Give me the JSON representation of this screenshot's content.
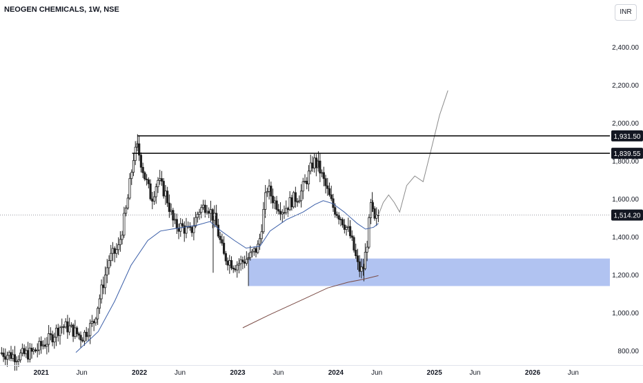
{
  "header": {
    "symbol_title": "NEOGEN CHEMICALS, 1W, NSE",
    "currency": "INR"
  },
  "colors": {
    "candle": "#1f1f1f",
    "ma_short": "#3a5ea8",
    "ma_long": "#7a4a44",
    "zone": "#a9bdf0",
    "projection": "#8a8a8a",
    "level_line": "#000000",
    "crosshair": "#9598a1"
  },
  "chart_data": {
    "type": "candlestick",
    "title": "NEOGEN CHEMICALS, 1W, NSE",
    "y_axis": {
      "ticks": [
        800,
        1000,
        1200,
        1400,
        1600,
        1800,
        2000,
        2200,
        2400
      ],
      "tick_labels": [
        "800.00",
        "1,000.00",
        "1,200.00",
        "1,400.00",
        "1,600.00",
        "1,800.00",
        "2,000.00",
        "2,200.00",
        "2,400.00"
      ],
      "range": [
        770,
        2600
      ]
    },
    "x_axis": {
      "range": [
        "2020-08-01",
        "2026-10-15"
      ],
      "ticks": [
        {
          "date": "2021-01-01",
          "label": "2021",
          "bold": true
        },
        {
          "date": "2021-06-01",
          "label": "Jun",
          "bold": false
        },
        {
          "date": "2022-01-01",
          "label": "2022",
          "bold": true
        },
        {
          "date": "2022-06-01",
          "label": "Jun",
          "bold": false
        },
        {
          "date": "2023-01-01",
          "label": "2023",
          "bold": true
        },
        {
          "date": "2023-06-01",
          "label": "Jun",
          "bold": false
        },
        {
          "date": "2024-01-01",
          "label": "2024",
          "bold": true
        },
        {
          "date": "2024-06-01",
          "label": "Jun",
          "bold": false
        },
        {
          "date": "2025-01-01",
          "label": "2025",
          "bold": true
        },
        {
          "date": "2025-06-01",
          "label": "Jun",
          "bold": false
        },
        {
          "date": "2026-01-01",
          "label": "2026",
          "bold": true
        },
        {
          "date": "2026-06-01",
          "label": "Jun",
          "bold": false
        }
      ]
    },
    "closes_anchors": [
      [
        "2020-08-01",
        790
      ],
      [
        "2020-10-01",
        770
      ],
      [
        "2020-12-01",
        790
      ],
      [
        "2021-02-01",
        860
      ],
      [
        "2021-03-15",
        930
      ],
      [
        "2021-04-15",
        920
      ],
      [
        "2021-06-01",
        870
      ],
      [
        "2021-07-15",
        950
      ],
      [
        "2021-08-10",
        1100
      ],
      [
        "2021-09-10",
        1280
      ],
      [
        "2021-10-15",
        1340
      ],
      [
        "2021-11-15",
        1560
      ],
      [
        "2021-12-10",
        1820
      ],
      [
        "2021-12-25",
        1870
      ],
      [
        "2022-01-20",
        1720
      ],
      [
        "2022-02-15",
        1600
      ],
      [
        "2022-03-10",
        1700
      ],
      [
        "2022-04-10",
        1620
      ],
      [
        "2022-05-10",
        1460
      ],
      [
        "2022-06-10",
        1450
      ],
      [
        "2022-07-10",
        1420
      ],
      [
        "2022-08-10",
        1540
      ],
      [
        "2022-09-10",
        1570
      ],
      [
        "2022-10-10",
        1480
      ],
      [
        "2022-11-10",
        1300
      ],
      [
        "2022-12-20",
        1250
      ],
      [
        "2023-01-20",
        1270
      ],
      [
        "2023-02-20",
        1300
      ],
      [
        "2023-03-20",
        1350
      ],
      [
        "2023-04-20",
        1660
      ],
      [
        "2023-05-20",
        1580
      ],
      [
        "2023-06-20",
        1540
      ],
      [
        "2023-07-20",
        1590
      ],
      [
        "2023-08-20",
        1620
      ],
      [
        "2023-09-20",
        1720
      ],
      [
        "2023-10-10",
        1800
      ],
      [
        "2023-10-31",
        1760
      ],
      [
        "2023-11-25",
        1660
      ],
      [
        "2023-12-20",
        1560
      ],
      [
        "2024-01-20",
        1500
      ],
      [
        "2024-02-20",
        1420
      ],
      [
        "2024-03-10",
        1320
      ],
      [
        "2024-03-25",
        1230
      ],
      [
        "2024-04-10",
        1220
      ],
      [
        "2024-04-25",
        1360
      ],
      [
        "2024-05-10",
        1560
      ],
      [
        "2024-05-25",
        1470
      ],
      [
        "2024-06-07",
        1514
      ]
    ],
    "highs_lows": [
      {
        "date": "2021-12-25",
        "high": 1940
      },
      {
        "date": "2023-10-28",
        "high": 1850
      },
      {
        "date": "2023-02-10",
        "low": 1140
      },
      {
        "date": "2024-04-14",
        "low": 1165
      },
      {
        "date": "2024-05-15",
        "high": 1635
      },
      {
        "date": "2022-10-02",
        "low": 1210
      }
    ],
    "ma_short": [
      [
        "2021-05-10",
        790
      ],
      [
        "2021-08-01",
        900
      ],
      [
        "2021-10-01",
        1060
      ],
      [
        "2021-12-01",
        1250
      ],
      [
        "2022-02-01",
        1380
      ],
      [
        "2022-03-20",
        1430
      ],
      [
        "2022-05-01",
        1440
      ],
      [
        "2022-06-15",
        1450
      ],
      [
        "2022-08-01",
        1460
      ],
      [
        "2022-09-20",
        1480
      ],
      [
        "2022-11-01",
        1430
      ],
      [
        "2022-12-20",
        1380
      ],
      [
        "2023-02-01",
        1340
      ],
      [
        "2023-03-25",
        1350
      ],
      [
        "2023-05-01",
        1430
      ],
      [
        "2023-07-01",
        1490
      ],
      [
        "2023-09-01",
        1530
      ],
      [
        "2023-10-15",
        1570
      ],
      [
        "2023-11-15",
        1590
      ],
      [
        "2023-12-20",
        1575
      ],
      [
        "2024-02-01",
        1530
      ],
      [
        "2024-03-20",
        1470
      ],
      [
        "2024-04-20",
        1440
      ],
      [
        "2024-05-20",
        1450
      ],
      [
        "2024-06-07",
        1470
      ]
    ],
    "ma_long": [
      [
        "2023-01-20",
        920
      ],
      [
        "2023-05-01",
        990
      ],
      [
        "2023-09-01",
        1070
      ],
      [
        "2023-12-01",
        1130
      ],
      [
        "2024-02-15",
        1160
      ],
      [
        "2024-04-10",
        1175
      ],
      [
        "2024-06-07",
        1195
      ]
    ],
    "projection": [
      [
        "2024-06-07",
        1514
      ],
      [
        "2024-06-25",
        1580
      ],
      [
        "2024-07-15",
        1620
      ],
      [
        "2024-08-05",
        1580
      ],
      [
        "2024-08-25",
        1530
      ],
      [
        "2024-09-20",
        1670
      ],
      [
        "2024-10-20",
        1720
      ],
      [
        "2024-11-20",
        1690
      ],
      [
        "2024-12-20",
        1860
      ],
      [
        "2025-01-20",
        2040
      ],
      [
        "2025-02-20",
        2170
      ]
    ],
    "zone": {
      "x0": "2023-02-10",
      "x1": "2026-10-15",
      "y0": 1140,
      "y1": 1285
    },
    "horizontal_levels": [
      {
        "value": 1931.5,
        "label": "1,931.50",
        "start": "2021-12-25"
      },
      {
        "value": 1839.55,
        "label": "1,839.55",
        "start": "2021-12-05"
      }
    ],
    "last_price": {
      "value": 1514.2,
      "label": "1,514.20"
    }
  }
}
